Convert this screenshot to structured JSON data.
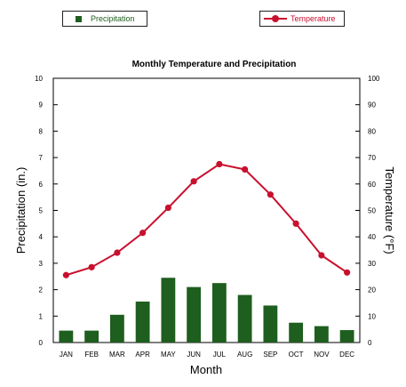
{
  "legend": {
    "precip_label": "Precipitation",
    "temp_label": "Temperature"
  },
  "colors": {
    "bar": "#1e5e1e",
    "line": "#c8102e",
    "text_precip": "#1e5e1e",
    "text_temp": "#c8102e"
  },
  "chart_data": {
    "type": "bar",
    "title": "Monthly Temperature and Precipitation",
    "xlabel": "Month",
    "ylabel": "Precipitation (in.)",
    "ylabel_right": "Temperature (°F)",
    "categories": [
      "JAN",
      "FEB",
      "MAR",
      "APR",
      "MAY",
      "JUN",
      "JUL",
      "AUG",
      "SEP",
      "OCT",
      "NOV",
      "DEC"
    ],
    "ylim": [
      0,
      10
    ],
    "ylim_right": [
      0,
      100
    ],
    "yticks": [
      0,
      1,
      2,
      3,
      4,
      5,
      6,
      7,
      8,
      9,
      10
    ],
    "yticks_right": [
      0,
      10,
      20,
      30,
      40,
      50,
      60,
      70,
      80,
      90,
      100
    ],
    "grid": false,
    "series": [
      {
        "name": "Precipitation",
        "type": "bar",
        "axis": "left",
        "values": [
          0.45,
          0.45,
          1.05,
          1.55,
          2.45,
          2.1,
          2.25,
          1.8,
          1.4,
          0.75,
          0.62,
          0.47
        ]
      },
      {
        "name": "Temperature",
        "type": "line",
        "axis": "right",
        "values": [
          25.5,
          28.5,
          34,
          41.5,
          51,
          61,
          67.5,
          65.5,
          56,
          45,
          33,
          26.5
        ]
      }
    ]
  }
}
